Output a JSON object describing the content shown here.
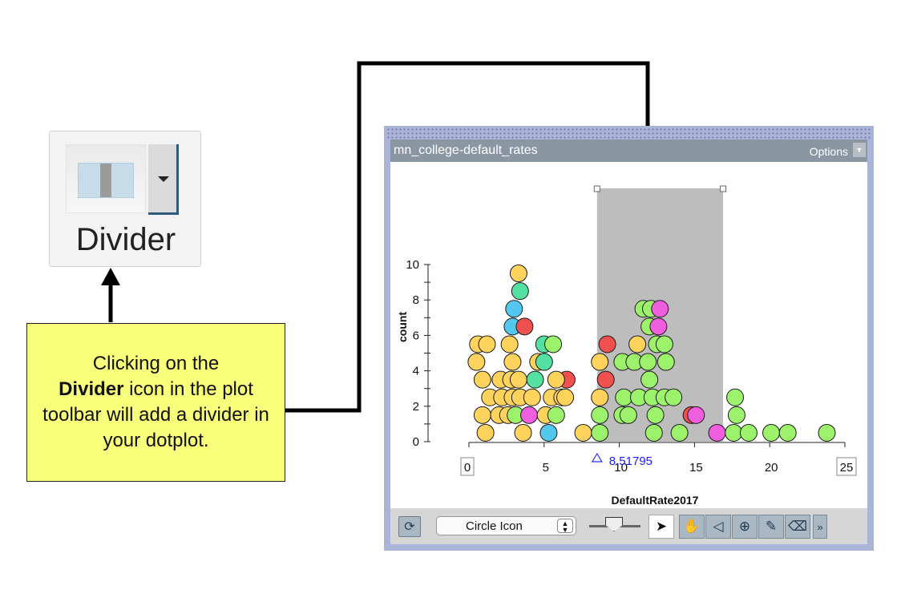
{
  "divider_tool": {
    "label": "Divider",
    "icon": "divider-icon",
    "menu_icon": "chevron-down-icon"
  },
  "note": {
    "line1": "Clicking on the",
    "bold": "Divider",
    "line2": " icon in the plot toolbar will add a divider in your dotplot."
  },
  "graph": {
    "title": "mn_college-default_rates",
    "options_label": "Options",
    "divider_readout": "8.51795",
    "toolbar": {
      "point_type": "Circle Icon",
      "tools": [
        "arrow-select-icon",
        "drag-hand-icon",
        "move-left-icon",
        "add-point-icon",
        "pencil-icon",
        "eraser-icon"
      ],
      "more": "»"
    }
  },
  "colors": {
    "yellow": "#ffd35c",
    "green": "#9cf26b",
    "teal": "#54e0a0",
    "blue": "#52c8ee",
    "red": "#f0504e",
    "pink": "#f05ee0",
    "divider_band": "#bdbdbd",
    "note_bg": "#f8ff7a"
  },
  "chart_data": {
    "type": "scatter",
    "xlabel": "DefaultRate2017",
    "ylabel": "count",
    "xlim": [
      0,
      25
    ],
    "ylim": [
      0,
      10
    ],
    "x_ticks": [
      0,
      5,
      10,
      15,
      20,
      25
    ],
    "y_ticks": [
      0,
      2,
      4,
      6,
      8,
      10
    ],
    "divider": {
      "from": 8.51795,
      "to": 16.9
    },
    "points": [
      {
        "x": 1.1,
        "y": 0.5,
        "c": "yellow"
      },
      {
        "x": 0.9,
        "y": 1.5,
        "c": "yellow"
      },
      {
        "x": 1.4,
        "y": 2.5,
        "c": "yellow"
      },
      {
        "x": 0.9,
        "y": 3.5,
        "c": "yellow"
      },
      {
        "x": 0.5,
        "y": 4.5,
        "c": "yellow"
      },
      {
        "x": 0.6,
        "y": 5.5,
        "c": "yellow"
      },
      {
        "x": 1.2,
        "y": 5.5,
        "c": "yellow"
      },
      {
        "x": 2.0,
        "y": 1.5,
        "c": "yellow"
      },
      {
        "x": 2.2,
        "y": 2.5,
        "c": "yellow"
      },
      {
        "x": 2.1,
        "y": 3.5,
        "c": "yellow"
      },
      {
        "x": 2.6,
        "y": 1.5,
        "c": "yellow"
      },
      {
        "x": 2.9,
        "y": 2.5,
        "c": "yellow"
      },
      {
        "x": 2.8,
        "y": 3.5,
        "c": "yellow"
      },
      {
        "x": 2.9,
        "y": 4.5,
        "c": "yellow"
      },
      {
        "x": 2.7,
        "y": 5.5,
        "c": "yellow"
      },
      {
        "x": 3.1,
        "y": 1.5,
        "c": "green"
      },
      {
        "x": 3.4,
        "y": 2.5,
        "c": "yellow"
      },
      {
        "x": 3.3,
        "y": 3.5,
        "c": "yellow"
      },
      {
        "x": 2.9,
        "y": 6.5,
        "c": "blue"
      },
      {
        "x": 3.0,
        "y": 7.5,
        "c": "blue"
      },
      {
        "x": 3.4,
        "y": 8.5,
        "c": "teal"
      },
      {
        "x": 3.3,
        "y": 9.5,
        "c": "yellow"
      },
      {
        "x": 3.7,
        "y": 6.5,
        "c": "red"
      },
      {
        "x": 3.6,
        "y": 0.5,
        "c": "yellow"
      },
      {
        "x": 4.0,
        "y": 1.5,
        "c": "pink"
      },
      {
        "x": 4.2,
        "y": 2.5,
        "c": "yellow"
      },
      {
        "x": 4.4,
        "y": 3.5,
        "c": "teal"
      },
      {
        "x": 4.6,
        "y": 4.5,
        "c": "yellow"
      },
      {
        "x": 5.0,
        "y": 4.5,
        "c": "teal"
      },
      {
        "x": 5.0,
        "y": 5.5,
        "c": "teal"
      },
      {
        "x": 5.6,
        "y": 5.5,
        "c": "green"
      },
      {
        "x": 5.1,
        "y": 1.5,
        "c": "yellow"
      },
      {
        "x": 5.5,
        "y": 2.5,
        "c": "yellow"
      },
      {
        "x": 5.3,
        "y": 0.5,
        "c": "blue"
      },
      {
        "x": 5.8,
        "y": 1.5,
        "c": "green"
      },
      {
        "x": 6.2,
        "y": 2.5,
        "c": "yellow"
      },
      {
        "x": 6.5,
        "y": 3.5,
        "c": "red"
      },
      {
        "x": 6.4,
        "y": 2.5,
        "c": "yellow"
      },
      {
        "x": 5.8,
        "y": 3.5,
        "c": "yellow"
      },
      {
        "x": 7.6,
        "y": 0.5,
        "c": "yellow"
      },
      {
        "x": 8.7,
        "y": 0.5,
        "c": "green"
      },
      {
        "x": 8.7,
        "y": 1.5,
        "c": "green"
      },
      {
        "x": 8.7,
        "y": 2.5,
        "c": "yellow"
      },
      {
        "x": 8.7,
        "y": 4.5,
        "c": "yellow"
      },
      {
        "x": 9.1,
        "y": 3.5,
        "c": "red"
      },
      {
        "x": 9.2,
        "y": 5.5,
        "c": "red"
      },
      {
        "x": 10.2,
        "y": 1.5,
        "c": "green"
      },
      {
        "x": 10.3,
        "y": 2.5,
        "c": "green"
      },
      {
        "x": 10.6,
        "y": 1.5,
        "c": "green"
      },
      {
        "x": 10.2,
        "y": 4.5,
        "c": "green"
      },
      {
        "x": 11.2,
        "y": 5.5,
        "c": "yellow"
      },
      {
        "x": 11.0,
        "y": 4.5,
        "c": "green"
      },
      {
        "x": 11.3,
        "y": 2.5,
        "c": "green"
      },
      {
        "x": 11.6,
        "y": 7.5,
        "c": "green"
      },
      {
        "x": 12.0,
        "y": 6.5,
        "c": "green"
      },
      {
        "x": 12.1,
        "y": 7.5,
        "c": "green"
      },
      {
        "x": 12.0,
        "y": 3.5,
        "c": "green"
      },
      {
        "x": 11.9,
        "y": 4.5,
        "c": "green"
      },
      {
        "x": 12.2,
        "y": 2.5,
        "c": "green"
      },
      {
        "x": 12.3,
        "y": 0.5,
        "c": "green"
      },
      {
        "x": 12.4,
        "y": 1.5,
        "c": "green"
      },
      {
        "x": 12.5,
        "y": 5.5,
        "c": "green"
      },
      {
        "x": 12.6,
        "y": 6.5,
        "c": "pink"
      },
      {
        "x": 12.7,
        "y": 7.5,
        "c": "pink"
      },
      {
        "x": 13.0,
        "y": 5.5,
        "c": "green"
      },
      {
        "x": 13.1,
        "y": 4.5,
        "c": "green"
      },
      {
        "x": 13.0,
        "y": 2.5,
        "c": "green"
      },
      {
        "x": 13.6,
        "y": 2.5,
        "c": "green"
      },
      {
        "x": 14.0,
        "y": 0.5,
        "c": "green"
      },
      {
        "x": 14.8,
        "y": 1.5,
        "c": "red"
      },
      {
        "x": 15.1,
        "y": 1.5,
        "c": "pink"
      },
      {
        "x": 16.5,
        "y": 0.5,
        "c": "pink"
      },
      {
        "x": 17.6,
        "y": 0.5,
        "c": "green"
      },
      {
        "x": 17.8,
        "y": 1.5,
        "c": "green"
      },
      {
        "x": 17.7,
        "y": 2.5,
        "c": "green"
      },
      {
        "x": 18.6,
        "y": 0.5,
        "c": "green"
      },
      {
        "x": 20.1,
        "y": 0.5,
        "c": "green"
      },
      {
        "x": 21.2,
        "y": 0.5,
        "c": "green"
      },
      {
        "x": 23.8,
        "y": 0.5,
        "c": "green"
      }
    ]
  }
}
